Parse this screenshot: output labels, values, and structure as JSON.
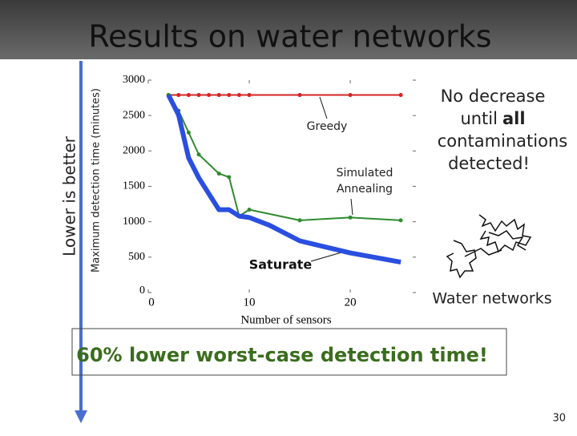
{
  "slide": {
    "title": "Results on water networks",
    "side_label": "Lower is better",
    "note_lines": [
      "No decrease",
      "until",
      "all",
      "contaminations",
      "detected!"
    ],
    "image_caption": "Water networks",
    "conclusion": "60% lower worst-case detection time!",
    "page_number": "30"
  },
  "chart_data": {
    "type": "line",
    "x_label": "Number of sensors",
    "y_label": "Maximum detection time (minutes)",
    "xlim": [
      0,
      26.5
    ],
    "xticks": [
      0,
      10,
      20
    ],
    "ylim": [
      0,
      3000
    ],
    "yticks": [
      0,
      500,
      1000,
      1500,
      2000,
      2500,
      3000
    ],
    "annotations": {
      "greedy": "Greedy",
      "annealing": [
        "Simulated",
        "Annealing"
      ],
      "saturate": "Saturate"
    },
    "series": [
      {
        "color": "#d42424",
        "markers": true,
        "width": 2,
        "x": [
          2,
          3,
          4,
          5,
          6,
          7,
          8,
          9,
          10,
          15,
          20,
          25
        ],
        "values": [
          2790,
          2790,
          2790,
          2790,
          2790,
          2790,
          2790,
          2790,
          2790,
          2790,
          2790,
          2790
        ]
      },
      {
        "color": "#2e8b2e",
        "markers": true,
        "width": 2,
        "x": [
          2,
          3,
          4,
          5,
          7,
          8,
          9,
          10,
          15,
          20,
          25
        ],
        "values": [
          2790,
          2570,
          2260,
          1950,
          1680,
          1630,
          1080,
          1170,
          1020,
          1060,
          1020
        ]
      },
      {
        "color": "#2a4fe0",
        "markers": false,
        "width": 6,
        "x": [
          2,
          3,
          4,
          5,
          7,
          8,
          9,
          10,
          12,
          15,
          20,
          25
        ],
        "values": [
          2790,
          2510,
          1900,
          1620,
          1170,
          1170,
          1080,
          1060,
          950,
          730,
          560,
          430
        ]
      }
    ]
  }
}
